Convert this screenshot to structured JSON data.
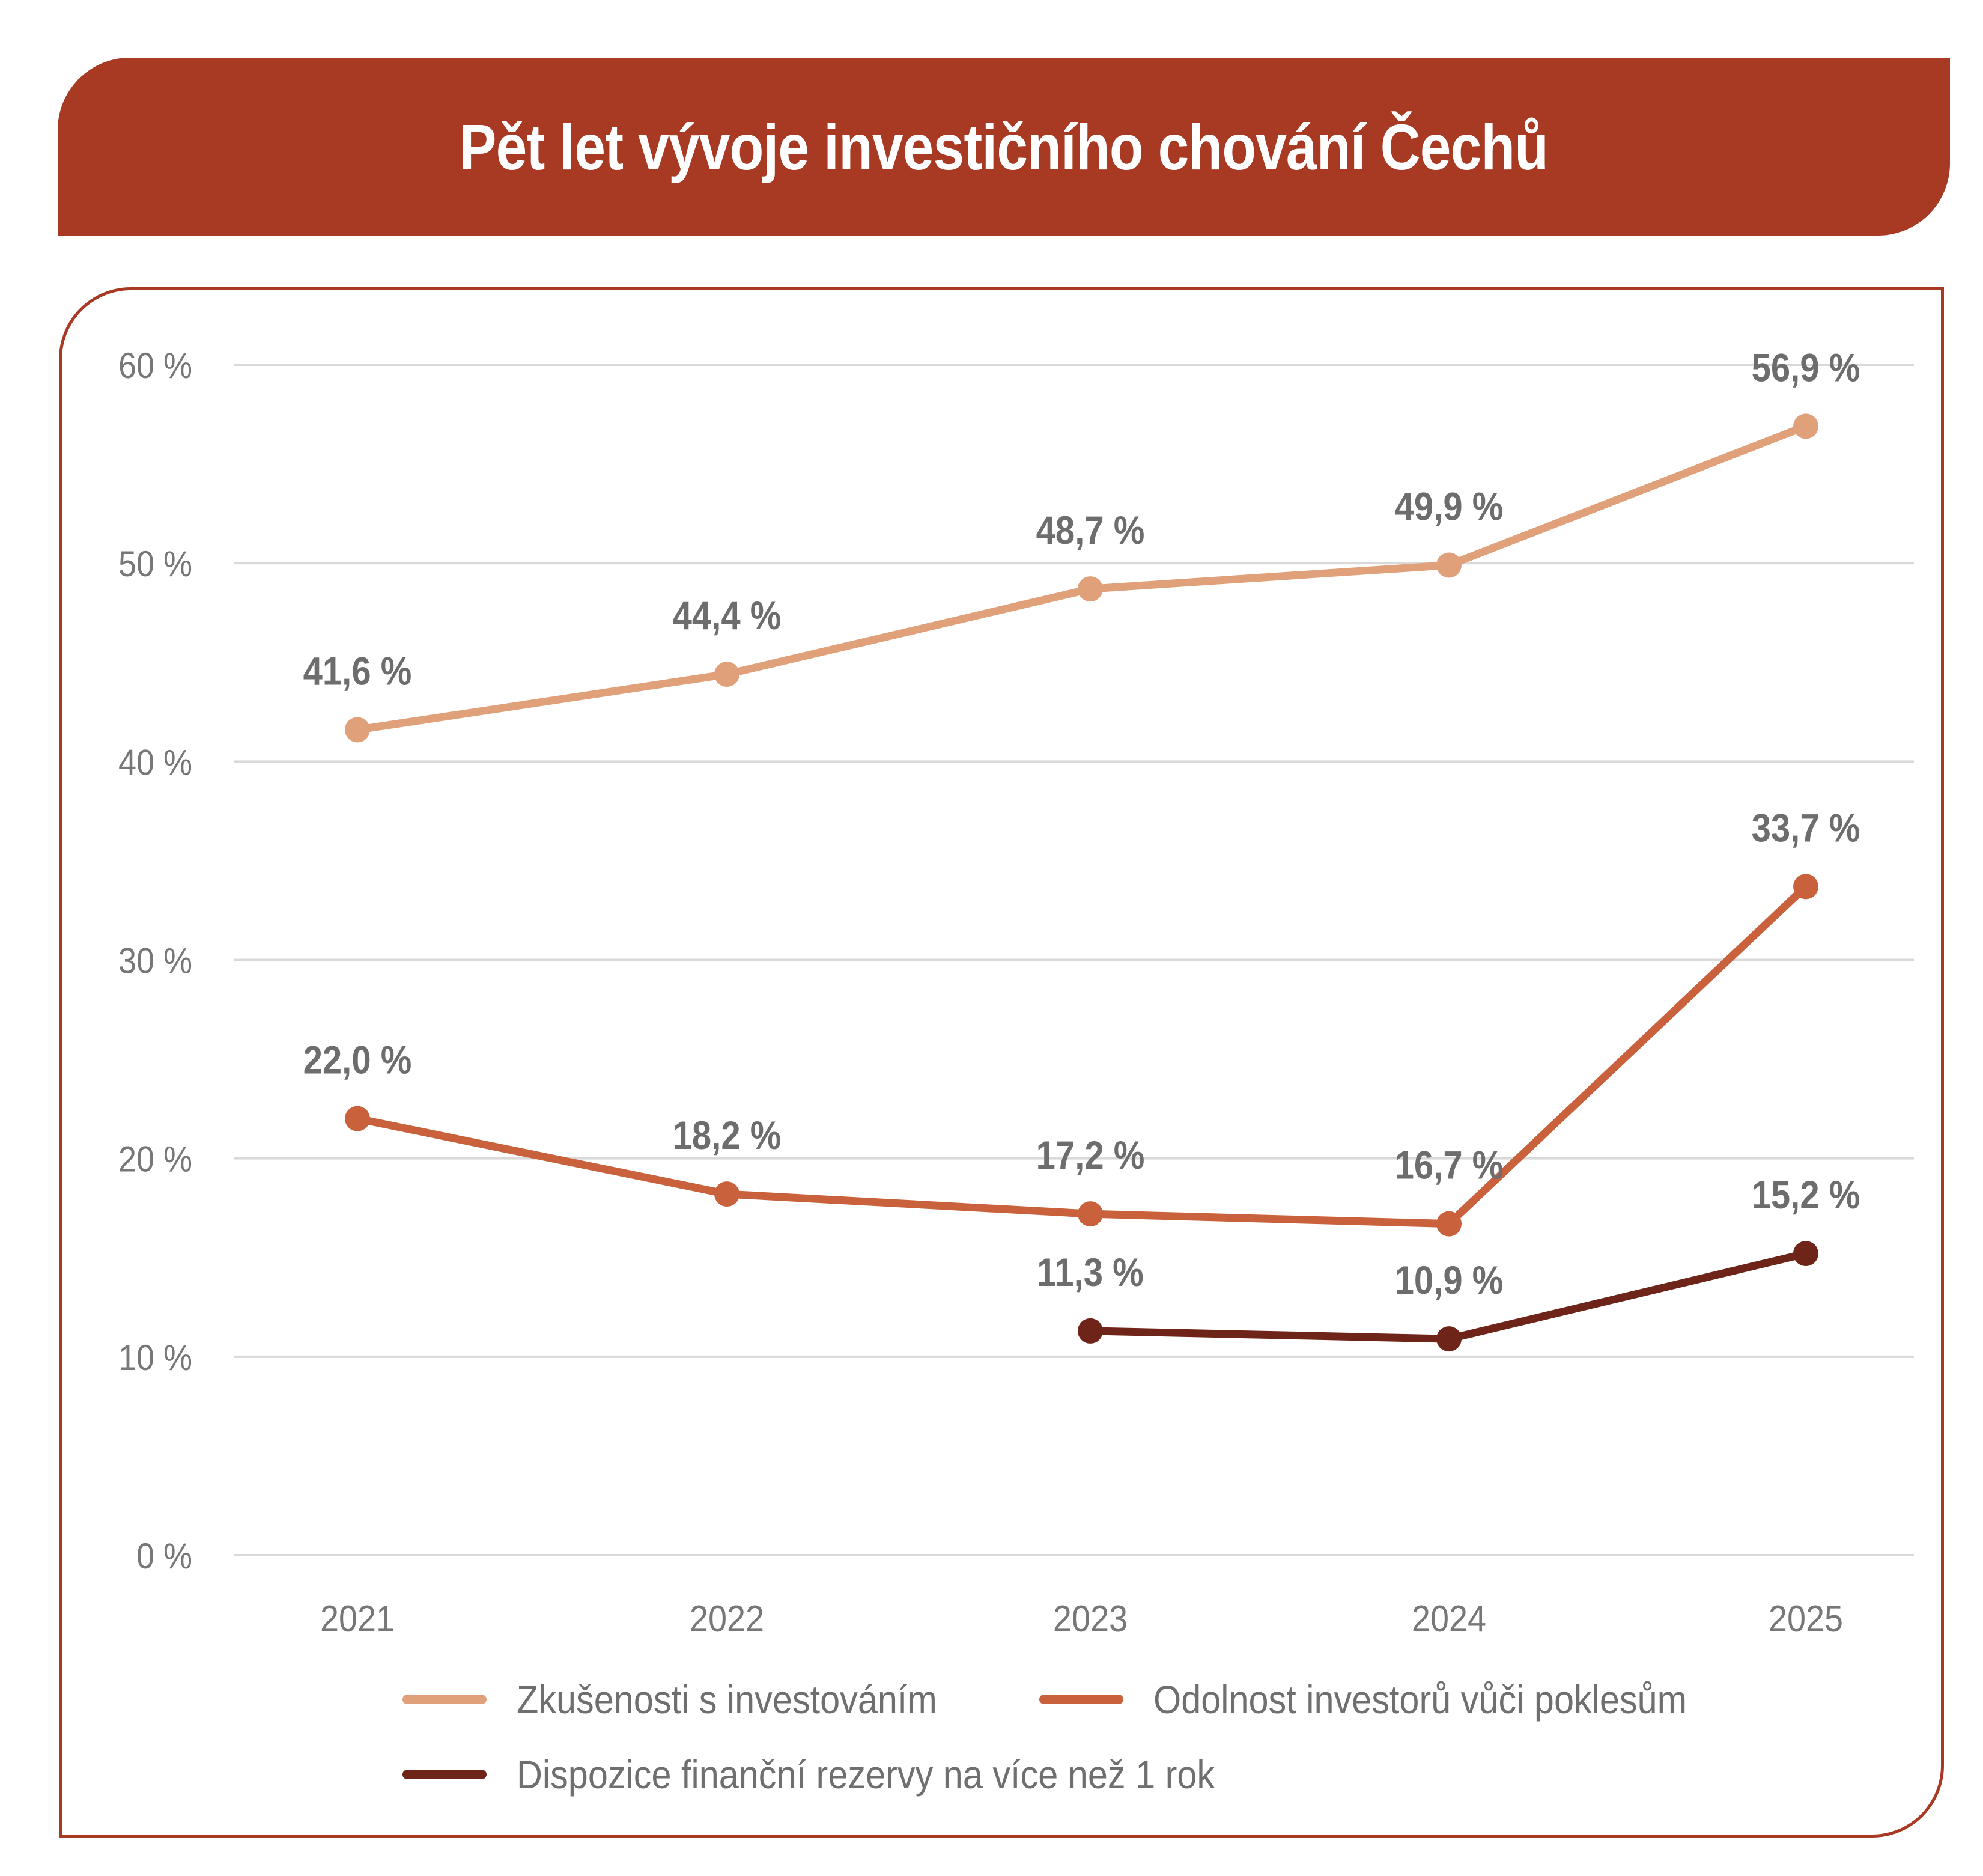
{
  "title": "Pět let vývoje investičního chování Čechů",
  "colors": {
    "brand": "#a83a24",
    "grid": "#d9d9d9",
    "axis_text": "#777777",
    "label_text": "#6d6d6d"
  },
  "chart_data": {
    "type": "line",
    "categories": [
      "2021",
      "2022",
      "2023",
      "2024",
      "2025"
    ],
    "ylim": [
      0,
      60
    ],
    "yticks": [
      0,
      10,
      20,
      30,
      40,
      50,
      60
    ],
    "ytick_labels": [
      "0 %",
      "10 %",
      "20 %",
      "30 %",
      "40 %",
      "50 %",
      "60 %"
    ],
    "grid": true,
    "legend_position": "bottom",
    "series": [
      {
        "name": "Zkušenosti s investováním",
        "color": "#e0a07a",
        "values": [
          41.6,
          44.4,
          48.7,
          49.9,
          56.9
        ],
        "labels": [
          "41,6 %",
          "44,4 %",
          "48,7 %",
          "49,9 %",
          "56,9 %"
        ]
      },
      {
        "name": "Odolnost investorů vůči poklesům",
        "color": "#c9623c",
        "values": [
          22.0,
          18.2,
          17.2,
          16.7,
          33.7
        ],
        "labels": [
          "22,0 %",
          "18,2 %",
          "17,2 %",
          "16,7 %",
          "33,7 %"
        ]
      },
      {
        "name": "Dispozice finanční rezervy na více než 1 rok",
        "color": "#6e2418",
        "values": [
          null,
          null,
          11.3,
          10.9,
          15.2
        ],
        "labels": [
          "",
          "",
          "11,3 %",
          "10,9 %",
          "15,2 %"
        ]
      }
    ]
  }
}
